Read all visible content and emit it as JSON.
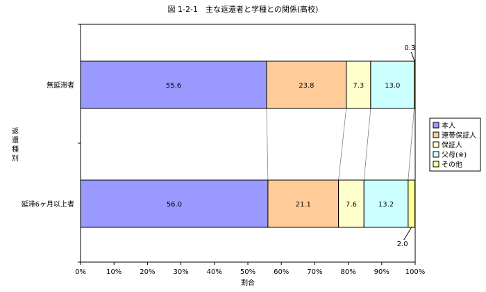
{
  "chart_data": {
    "type": "bar",
    "orientation": "horizontal",
    "stacked": true,
    "title": "図 1-2-1　主な返還者と学種との関係(高校)",
    "xlabel": "割合",
    "ylabel": "返還種別",
    "xlim": [
      0,
      100
    ],
    "x_ticks": [
      "0%",
      "10%",
      "20%",
      "30%",
      "40%",
      "50%",
      "60%",
      "70%",
      "80%",
      "90%",
      "100%"
    ],
    "categories": [
      "無延滞者",
      "延滞6ヶ月以上者"
    ],
    "series": [
      {
        "name": "本人",
        "color": "#9999ff",
        "values": [
          55.6,
          56.0
        ],
        "labels": [
          "55.6",
          "56.0"
        ]
      },
      {
        "name": "連帯保証人",
        "color": "#ffcc99",
        "values": [
          23.8,
          21.1
        ],
        "labels": [
          "23.8",
          "21.1"
        ]
      },
      {
        "name": "保証人",
        "color": "#ffffcc",
        "values": [
          7.3,
          7.6
        ],
        "labels": [
          "7.3",
          "7.6"
        ]
      },
      {
        "name": "父母(※)",
        "color": "#ccffff",
        "values": [
          13.0,
          13.2
        ],
        "labels": [
          "13.0",
          "13.2"
        ]
      },
      {
        "name": "その他",
        "color": "#ffff99",
        "values": [
          0.3,
          2.0
        ],
        "labels": [
          "0.3",
          "2.0"
        ]
      }
    ],
    "grid": false,
    "legend_position": "right"
  }
}
